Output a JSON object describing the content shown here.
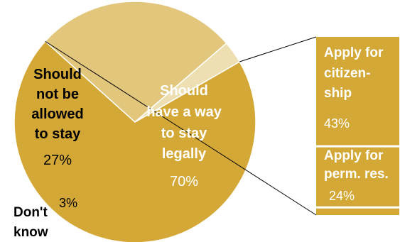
{
  "chart_data": {
    "type": "pie",
    "slices": [
      {
        "label_lines": [
          "Should",
          "have a way",
          "to stay",
          "legally"
        ],
        "value": 70,
        "value_label": "70%",
        "color": "#D4A836"
      },
      {
        "label_lines": [
          "Should",
          "not be",
          "allowed",
          "to stay"
        ],
        "value": 27,
        "value_label": "27%",
        "color": "#E2C67C"
      },
      {
        "label_lines": [
          "Don't",
          "know"
        ],
        "value": 3,
        "value_label": "3%",
        "color": "#EDDFB2"
      }
    ],
    "breakdown": {
      "of_slice": "Should have a way to stay legally",
      "segments": [
        {
          "label_lines": [
            "Apply for",
            "citizen-",
            "ship"
          ],
          "value": 43,
          "value_label": "43%",
          "color": "#D4A836"
        },
        {
          "label_lines": [
            "Apply for",
            "perm. res."
          ],
          "value": 24,
          "value_label": "24%",
          "color": "#D4A836"
        },
        {
          "label_lines": [],
          "value": 3,
          "value_label": "",
          "color": "#D4A836"
        }
      ]
    }
  }
}
